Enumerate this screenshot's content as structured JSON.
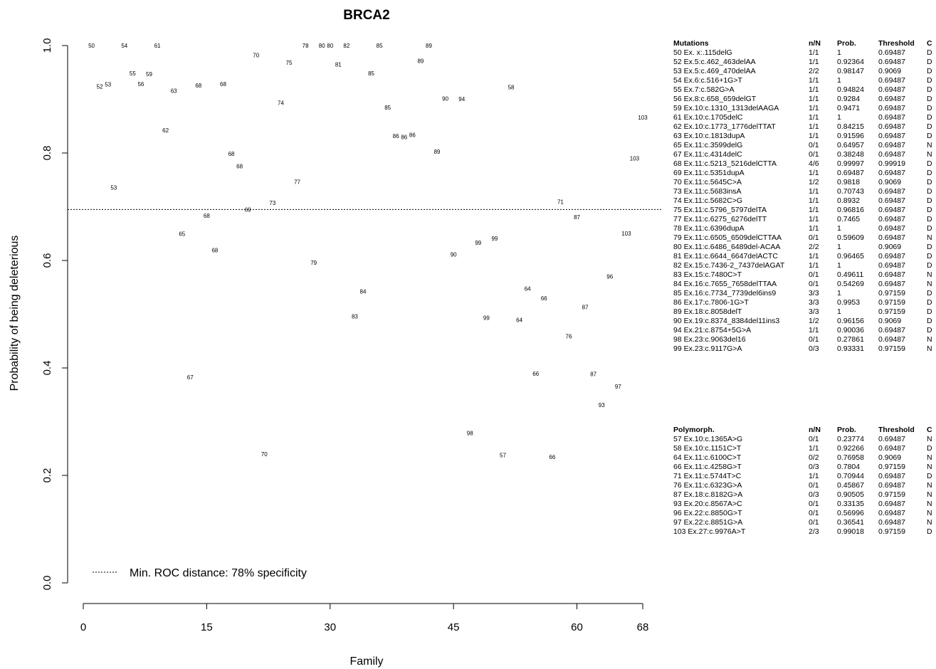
{
  "chart_data": {
    "type": "scatter",
    "title": "BRCA2",
    "xlabel": "Family",
    "ylabel": "Probability of being deleterious",
    "xlim": [
      0,
      68
    ],
    "ylim": [
      0,
      1
    ],
    "xticks": [
      "0",
      "15",
      "30",
      "45",
      "60",
      "68"
    ],
    "yticks": [
      "0.0",
      "0.2",
      "0.4",
      "0.6",
      "0.8",
      "1.0"
    ],
    "threshold_line": {
      "y": 0.69487,
      "style": "dotted",
      "legend": "Min. ROC distance: 78% specificity"
    },
    "legend_position": "bottom-left",
    "points": [
      {
        "x": 1,
        "y": 1.0,
        "label": "50"
      },
      {
        "x": 2,
        "y": 0.92364,
        "label": "52"
      },
      {
        "x": 3,
        "y": 0.92764,
        "label": "53"
      },
      {
        "x": 3.7,
        "y": 0.73556,
        "label": "53"
      },
      {
        "x": 5,
        "y": 1.0,
        "label": "54"
      },
      {
        "x": 6,
        "y": 0.94824,
        "label": "55"
      },
      {
        "x": 7,
        "y": 0.9284,
        "label": "56"
      },
      {
        "x": 8,
        "y": 0.9471,
        "label": "59"
      },
      {
        "x": 9,
        "y": 1.0,
        "label": "61"
      },
      {
        "x": 10,
        "y": 0.84215,
        "label": "62"
      },
      {
        "x": 11,
        "y": 0.91596,
        "label": "63"
      },
      {
        "x": 12,
        "y": 0.64957,
        "label": "65"
      },
      {
        "x": 13,
        "y": 0.38248,
        "label": "67"
      },
      {
        "x": 14,
        "y": 0.92564,
        "label": "68"
      },
      {
        "x": 15,
        "y": 0.6832,
        "label": "68"
      },
      {
        "x": 16,
        "y": 0.61934,
        "label": "68"
      },
      {
        "x": 17,
        "y": 0.92864,
        "label": "68"
      },
      {
        "x": 18,
        "y": 0.79856,
        "label": "68"
      },
      {
        "x": 19,
        "y": 0.77564,
        "label": "68"
      },
      {
        "x": 20,
        "y": 0.69487,
        "label": "69"
      },
      {
        "x": 21,
        "y": 0.9818,
        "label": "70"
      },
      {
        "x": 22,
        "y": 0.2395,
        "label": "70"
      },
      {
        "x": 23,
        "y": 0.70743,
        "label": "73"
      },
      {
        "x": 24,
        "y": 0.8932,
        "label": "74"
      },
      {
        "x": 25,
        "y": 0.96816,
        "label": "75"
      },
      {
        "x": 26,
        "y": 0.7465,
        "label": "77"
      },
      {
        "x": 27,
        "y": 1.0,
        "label": "78"
      },
      {
        "x": 28,
        "y": 0.59609,
        "label": "79"
      },
      {
        "x": 29,
        "y": 1.0,
        "label": "80"
      },
      {
        "x": 30,
        "y": 1.0,
        "label": "80"
      },
      {
        "x": 31,
        "y": 0.96465,
        "label": "81"
      },
      {
        "x": 32,
        "y": 1.0,
        "label": "82"
      },
      {
        "x": 33,
        "y": 0.49611,
        "label": "83"
      },
      {
        "x": 34,
        "y": 0.54269,
        "label": "84"
      },
      {
        "x": 35,
        "y": 0.9481,
        "label": "85"
      },
      {
        "x": 36,
        "y": 1.0,
        "label": "85"
      },
      {
        "x": 37,
        "y": 0.8846,
        "label": "85"
      },
      {
        "x": 38,
        "y": 0.8315,
        "label": "86"
      },
      {
        "x": 39,
        "y": 0.8295,
        "label": "86"
      },
      {
        "x": 40,
        "y": 0.8335,
        "label": "86"
      },
      {
        "x": 41,
        "y": 0.97159,
        "label": "89"
      },
      {
        "x": 42,
        "y": 1.0,
        "label": "89"
      },
      {
        "x": 43,
        "y": 0.8024,
        "label": "89"
      },
      {
        "x": 44,
        "y": 0.90156,
        "label": "90"
      },
      {
        "x": 45,
        "y": 0.61156,
        "label": "90"
      },
      {
        "x": 46,
        "y": 0.90036,
        "label": "94"
      },
      {
        "x": 47,
        "y": 0.27861,
        "label": "98"
      },
      {
        "x": 48,
        "y": 0.63331,
        "label": "99"
      },
      {
        "x": 49,
        "y": 0.49331,
        "label": "99"
      },
      {
        "x": 50,
        "y": 0.64131,
        "label": "99"
      },
      {
        "x": 51,
        "y": 0.23774,
        "label": "57"
      },
      {
        "x": 52,
        "y": 0.92266,
        "label": "58"
      },
      {
        "x": 53,
        "y": 0.48958,
        "label": "64"
      },
      {
        "x": 54,
        "y": 0.54758,
        "label": "64"
      },
      {
        "x": 55,
        "y": 0.3894,
        "label": "66"
      },
      {
        "x": 56,
        "y": 0.53,
        "label": "66"
      },
      {
        "x": 57,
        "y": 0.2344,
        "label": "66"
      },
      {
        "x": 58,
        "y": 0.70944,
        "label": "71"
      },
      {
        "x": 59,
        "y": 0.45867,
        "label": "76"
      },
      {
        "x": 60,
        "y": 0.6805,
        "label": "87"
      },
      {
        "x": 61,
        "y": 0.51305,
        "label": "87"
      },
      {
        "x": 62,
        "y": 0.38905,
        "label": "87"
      },
      {
        "x": 63,
        "y": 0.33135,
        "label": "93"
      },
      {
        "x": 64,
        "y": 0.56996,
        "label": "96"
      },
      {
        "x": 65,
        "y": 0.36541,
        "label": "97"
      },
      {
        "x": 66,
        "y": 0.65018,
        "label": "103"
      },
      {
        "x": 67,
        "y": 0.79018,
        "label": "103"
      },
      {
        "x": 68,
        "y": 0.86618,
        "label": "103"
      }
    ]
  },
  "mutations_table": {
    "headers": [
      "Mutations",
      "n/N",
      "Prob.",
      "Threshold",
      "C"
    ],
    "rows": [
      [
        "50 Ex. x:.115delG",
        "1/1",
        "1",
        "0.69487",
        "D"
      ],
      [
        "52 Ex.5:c.462_463delAA",
        "1/1",
        "0.92364",
        "0.69487",
        "D"
      ],
      [
        "53 Ex.5:c.469_470delAA",
        "2/2",
        "0.98147",
        "0.9069",
        "D"
      ],
      [
        "54 Ex.6:c.516+1G>T",
        "1/1",
        "1",
        "0.69487",
        "D"
      ],
      [
        "55 Ex.7:c.582G>A",
        "1/1",
        "0.94824",
        "0.69487",
        "D"
      ],
      [
        "56 Ex.8:c.658_659delGT",
        "1/1",
        "0.9284",
        "0.69487",
        "D"
      ],
      [
        "59 Ex.10:c.1310_1313delAAGA",
        "1/1",
        "0.9471",
        "0.69487",
        "D"
      ],
      [
        "61 Ex.10:c.1705delC",
        "1/1",
        "1",
        "0.69487",
        "D"
      ],
      [
        "62 Ex.10:c.1773_1776delTTAT",
        "1/1",
        "0.84215",
        "0.69487",
        "D"
      ],
      [
        "63 Ex.10:c.1813dupA",
        "1/1",
        "0.91596",
        "0.69487",
        "D"
      ],
      [
        "65 Ex.11:c.3599delG",
        "0/1",
        "0.64957",
        "0.69487",
        "N"
      ],
      [
        "67 Ex.11:c.4314delC",
        "0/1",
        "0.38248",
        "0.69487",
        "N"
      ],
      [
        "68 Ex.11:c.5213_5216delCTTA",
        "4/6",
        "0.99997",
        "0.99919",
        "D"
      ],
      [
        "69 Ex.11:c.5351dupA",
        "1/1",
        "0.69487",
        "0.69487",
        "D"
      ],
      [
        "70 Ex.11:c.5645C>A",
        "1/2",
        "0.9818",
        "0.9069",
        "D"
      ],
      [
        "73 Ex.11:c.5683insA",
        "1/1",
        "0.70743",
        "0.69487",
        "D"
      ],
      [
        "74 Ex.11:c.5682C>G",
        "1/1",
        "0.8932",
        "0.69487",
        "D"
      ],
      [
        "75 Ex.11:c.5796_5797delTA",
        "1/1",
        "0.96816",
        "0.69487",
        "D"
      ],
      [
        "77 Ex.11:c.6275_6276delTT",
        "1/1",
        "0.7465",
        "0.69487",
        "D"
      ],
      [
        "78 Ex.11:c.6396dupA",
        "1/1",
        "1",
        "0.69487",
        "D"
      ],
      [
        "79 Ex.11:c.6505_6509delCTTAA",
        "0/1",
        "0.59609",
        "0.69487",
        "N"
      ],
      [
        "80 Ex.11:c.6486_6489del-ACAA",
        "2/2",
        "1",
        "0.9069",
        "D"
      ],
      [
        "81 Ex.11:c.6644_6647delACTC",
        "1/1",
        "0.96465",
        "0.69487",
        "D"
      ],
      [
        "82 Ex.15:c.7436-2_7437delAGAT",
        "1/1",
        "1",
        "0.69487",
        "D"
      ],
      [
        "83 Ex.15:c.7480C>T",
        "0/1",
        "0.49611",
        "0.69487",
        "N"
      ],
      [
        "84 Ex.16:c.7655_7658delTTAA",
        "0/1",
        "0.54269",
        "0.69487",
        "N"
      ],
      [
        "85 Ex.16:c.7734_7739del6ins9",
        "3/3",
        "1",
        "0.97159",
        "D"
      ],
      [
        "86 Ex.17:c.7806-1G>T",
        "3/3",
        "0.9953",
        "0.97159",
        "D"
      ],
      [
        "89 Ex.18:c.8058delT",
        "3/3",
        "1",
        "0.97159",
        "D"
      ],
      [
        "90 Ex.19:c.8374_8384del11ins3",
        "1/2",
        "0.96156",
        "0.9069",
        "D"
      ],
      [
        "94 Ex.21:c.8754+5G>A",
        "1/1",
        "0.90036",
        "0.69487",
        "D"
      ],
      [
        "98 Ex.23:c.9063del16",
        "0/1",
        "0.27861",
        "0.69487",
        "N"
      ],
      [
        "99 Ex.23:c.9117G>A",
        "0/3",
        "0.93331",
        "0.97159",
        "N"
      ]
    ]
  },
  "polymorph_table": {
    "headers": [
      "Polymorph.",
      "n/N",
      "Prob.",
      "Threshold",
      "C"
    ],
    "rows": [
      [
        "57 Ex.10:c.1365A>G",
        "0/1",
        "0.23774",
        "0.69487",
        "N"
      ],
      [
        "58 Ex.10:c.1151C>T",
        "1/1",
        "0.92266",
        "0.69487",
        "D"
      ],
      [
        "64 Ex.11:c.6100C>T",
        "0/2",
        "0.76958",
        "0.9069",
        "N"
      ],
      [
        "66 Ex.11:c.4258G>T",
        "0/3",
        "0.7804",
        "0.97159",
        "N"
      ],
      [
        "71 Ex.11:c.5744T>C",
        "1/1",
        "0.70944",
        "0.69487",
        "D"
      ],
      [
        "76 Ex.11:c.6323G>A",
        "0/1",
        "0.45867",
        "0.69487",
        "N"
      ],
      [
        "87 Ex.18:c.8182G>A",
        "0/3",
        "0.90505",
        "0.97159",
        "N"
      ],
      [
        "93 Ex.20:c.8567A>C",
        "0/1",
        "0.33135",
        "0.69487",
        "N"
      ],
      [
        "96 Ex.22:c.8850G>T",
        "0/1",
        "0.56996",
        "0.69487",
        "N"
      ],
      [
        "97 Ex.22:c.8851G>A",
        "0/1",
        "0.36541",
        "0.69487",
        "N"
      ],
      [
        "103 Ex.27:c.9976A>T",
        "2/3",
        "0.99018",
        "0.97159",
        "D"
      ]
    ]
  }
}
